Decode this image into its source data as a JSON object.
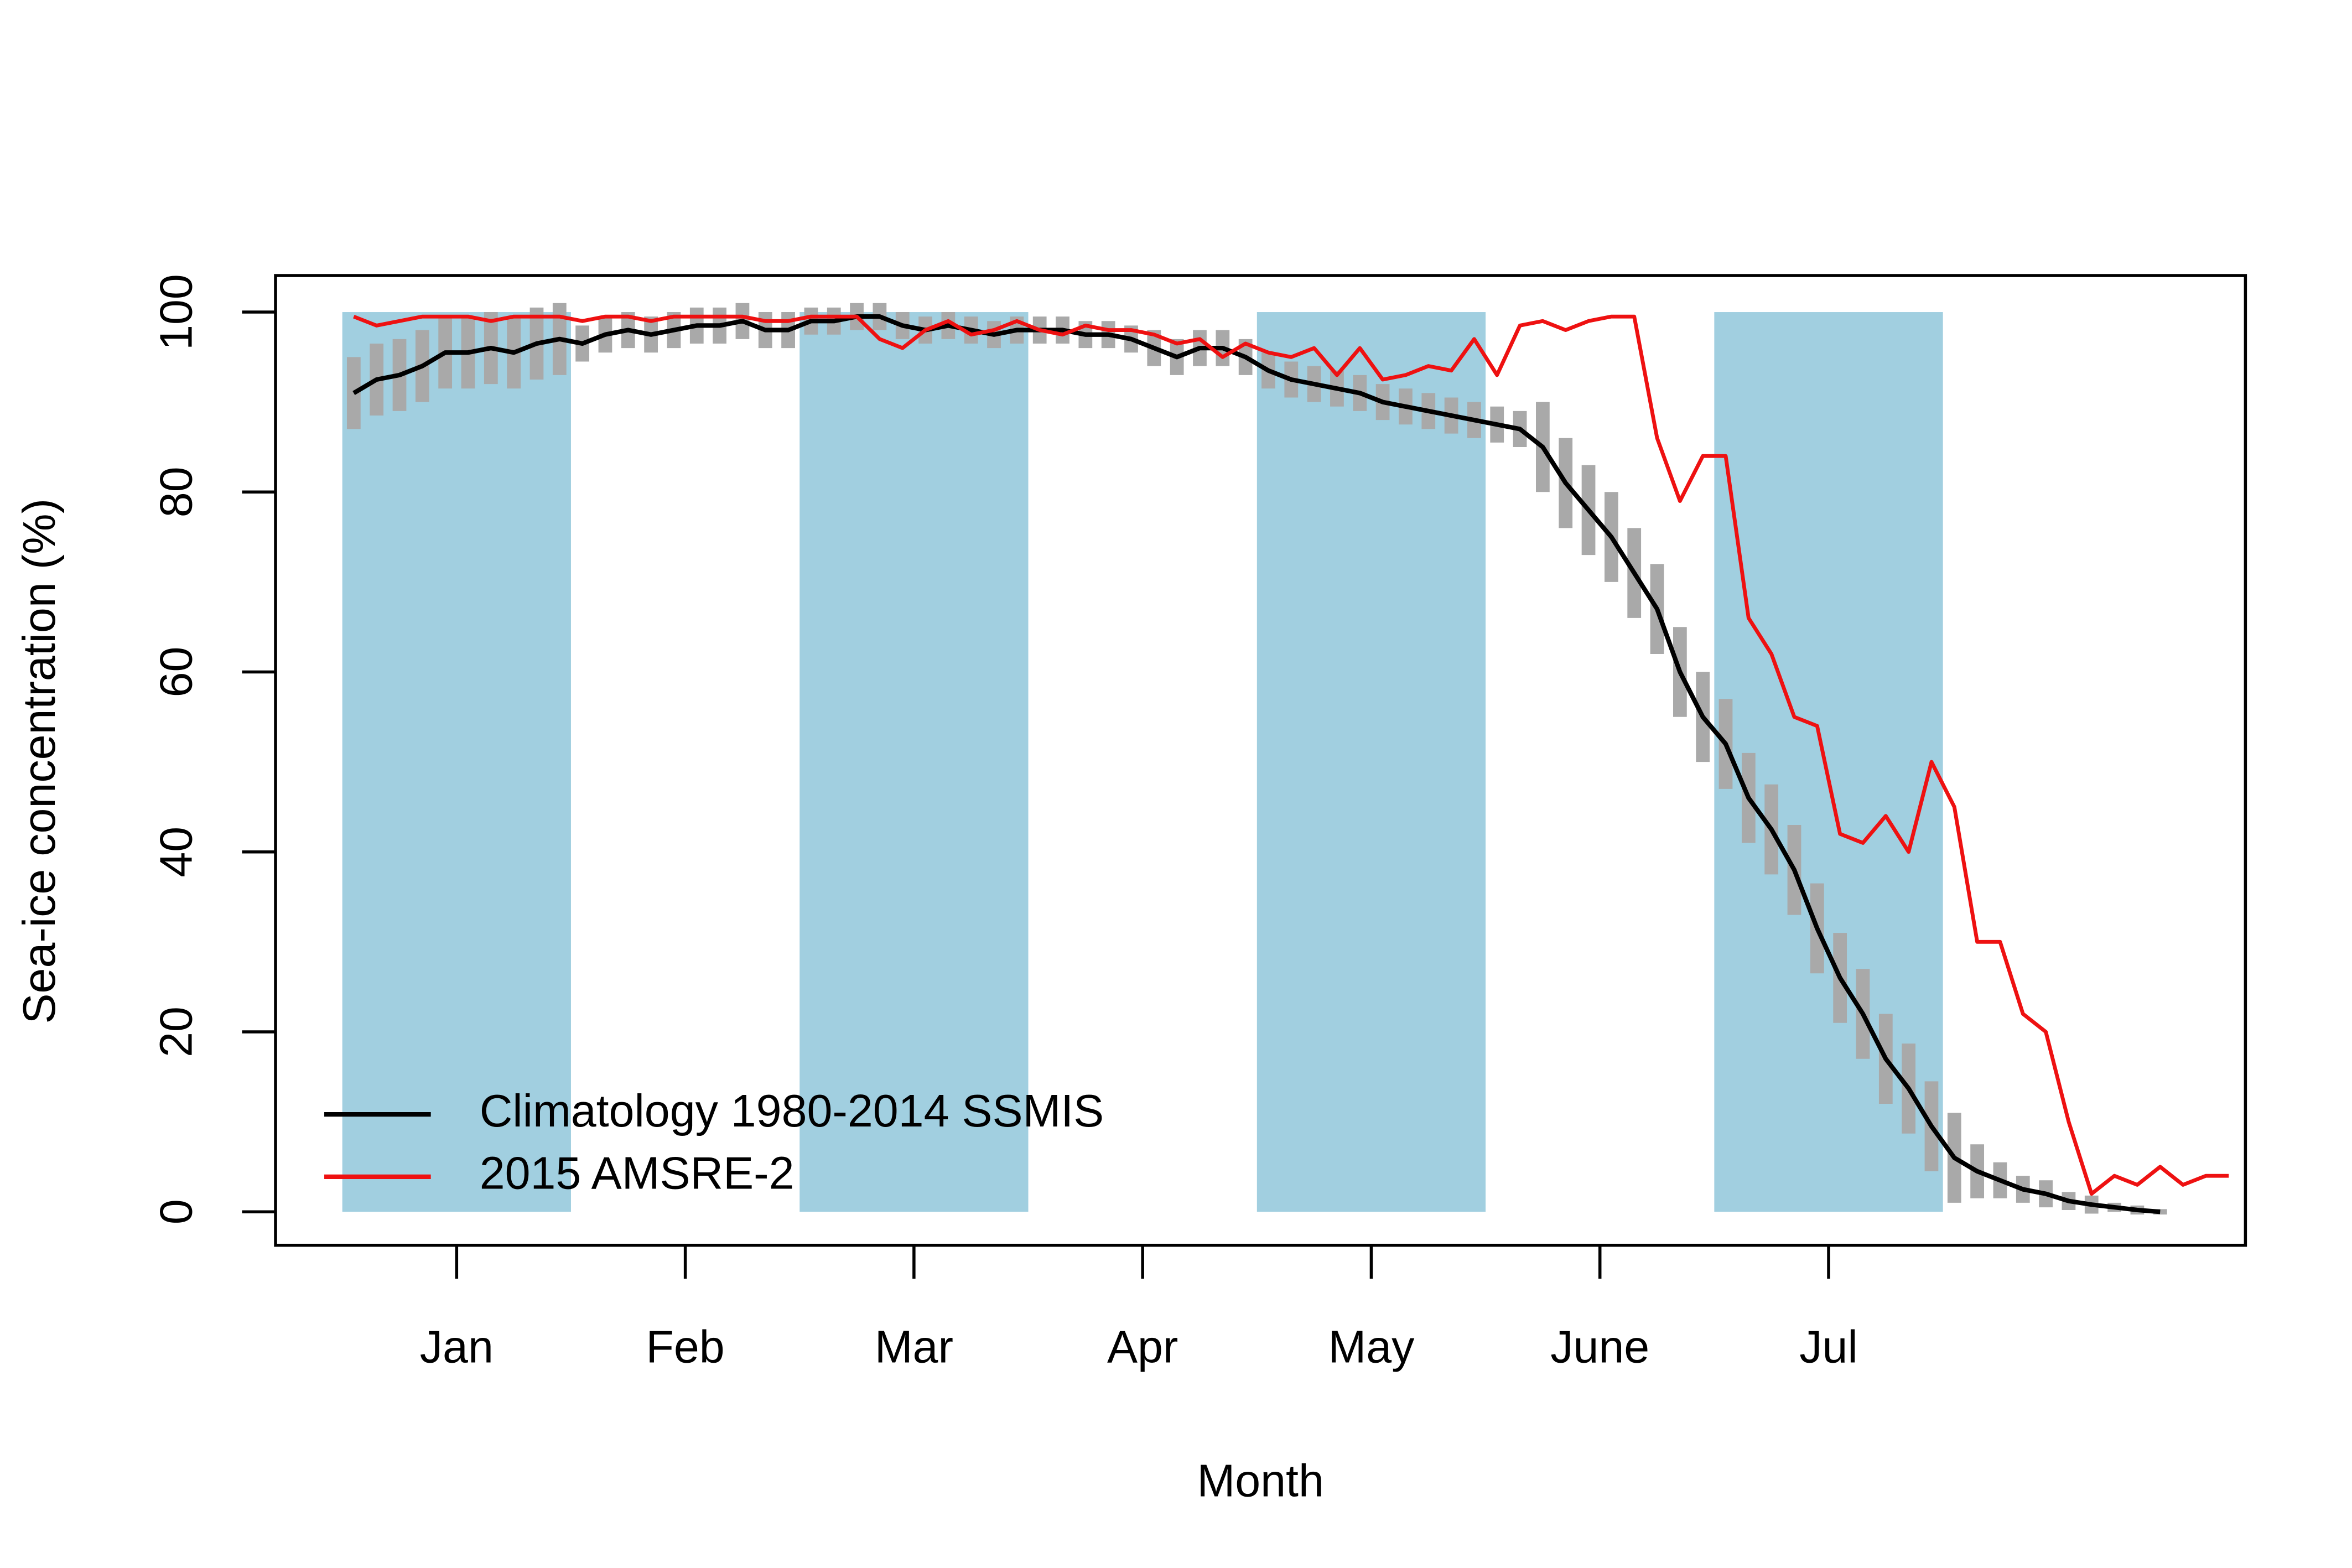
{
  "chart_data": {
    "type": "line",
    "xlabel": "Month",
    "ylabel": "Sea-ice concentration (%)",
    "x": [
      0.55,
      0.65,
      0.75,
      0.85,
      0.95,
      1.05,
      1.15,
      1.25,
      1.35,
      1.45,
      1.55,
      1.65,
      1.75,
      1.85,
      1.95,
      2.05,
      2.15,
      2.25,
      2.35,
      2.45,
      2.55,
      2.65,
      2.75,
      2.85,
      2.95,
      3.05,
      3.15,
      3.25,
      3.35,
      3.45,
      3.55,
      3.65,
      3.75,
      3.85,
      3.95,
      4.05,
      4.15,
      4.25,
      4.35,
      4.45,
      4.55,
      4.65,
      4.75,
      4.85,
      4.95,
      5.05,
      5.15,
      5.25,
      5.35,
      5.45,
      5.55,
      5.65,
      5.75,
      5.85,
      5.95,
      6.05,
      6.15,
      6.25,
      6.35,
      6.45,
      6.55,
      6.65,
      6.75,
      6.85,
      6.95,
      7.05,
      7.15,
      7.25,
      7.35,
      7.45,
      7.55,
      7.65,
      7.75,
      7.85,
      7.95,
      8.05,
      8.15,
      8.25,
      8.35,
      8.45,
      8.55,
      8.65,
      8.75
    ],
    "series": [
      {
        "name": "Climatology 1980-2014 SSMIS",
        "color": "#000000",
        "values": [
          91,
          92.5,
          93,
          94,
          95.5,
          95.5,
          96,
          95.5,
          96.5,
          97,
          96.5,
          97.5,
          98,
          97.5,
          98,
          98.5,
          98.5,
          99,
          98,
          98,
          99,
          99,
          99.5,
          99.5,
          98.5,
          98,
          98.5,
          98,
          97.5,
          98,
          98,
          98,
          97.5,
          97.5,
          97,
          96,
          95,
          96,
          96,
          95,
          93.5,
          92.5,
          92,
          91.5,
          91,
          90,
          89.5,
          89,
          88.5,
          88,
          87.5,
          87,
          85,
          81,
          78,
          75,
          71,
          67,
          60,
          55,
          52,
          46,
          42.5,
          38,
          31.5,
          26,
          22,
          17,
          13.7,
          9.5,
          6,
          4.5,
          3.5,
          2.5,
          2,
          1.2,
          0.8,
          0.5,
          0.2,
          0,
          null,
          null,
          null
        ],
        "errors": [
          4,
          4,
          4,
          4,
          4,
          4,
          4,
          4,
          4,
          4,
          2,
          2,
          2,
          2,
          2,
          2,
          2,
          2,
          2,
          2,
          1.5,
          1.5,
          1.5,
          1.5,
          1.5,
          1.5,
          1.5,
          1.5,
          1.5,
          1.5,
          1.5,
          1.5,
          1.5,
          1.5,
          1.5,
          2,
          2,
          2,
          2,
          2,
          2,
          2,
          2,
          2,
          2,
          2,
          2,
          2,
          2,
          2,
          2,
          2,
          5,
          5,
          5,
          5,
          5,
          5,
          5,
          5,
          5,
          5,
          5,
          5,
          5,
          5,
          5,
          5,
          5,
          5,
          5,
          3,
          2,
          1.5,
          1.5,
          1,
          1,
          0.5,
          0.5,
          0.3,
          null,
          null,
          null
        ],
        "error_color": "#a9a9a9"
      },
      {
        "name": "2015 AMSRE-2",
        "color": "#ee1111",
        "values": [
          99.5,
          98.5,
          99,
          99.5,
          99.5,
          99.5,
          99,
          99.5,
          99.5,
          99.5,
          99,
          99.5,
          99.5,
          99,
          99.5,
          99.5,
          99.5,
          99.5,
          99,
          99,
          99.5,
          99.5,
          99.5,
          97,
          96,
          98,
          99,
          97.5,
          98,
          99,
          98,
          97.5,
          98.5,
          98,
          98,
          97.5,
          96.5,
          97,
          95,
          96.5,
          95.5,
          95,
          96,
          93,
          96,
          92.5,
          93,
          94,
          93.5,
          97,
          93,
          98.5,
          99,
          98,
          99,
          99.5,
          99.5,
          86,
          79,
          84,
          84,
          66,
          62,
          55,
          54,
          42,
          41,
          44,
          40,
          50,
          45,
          30,
          30,
          22,
          20,
          10,
          2,
          4,
          3,
          5,
          3,
          4,
          4
        ]
      }
    ],
    "shaded_spans": [
      [
        0.5,
        1.5
      ],
      [
        2.5,
        3.5
      ],
      [
        4.5,
        5.5
      ],
      [
        6.5,
        7.5
      ]
    ],
    "shade_color": "#a1cfe0",
    "shade_ylim": [
      0,
      100
    ],
    "xlim": [
      0.208,
      8.823
    ],
    "xticks": [
      {
        "value": 1,
        "label": "Jan"
      },
      {
        "value": 2,
        "label": "Feb"
      },
      {
        "value": 3,
        "label": "Mar"
      },
      {
        "value": 4,
        "label": "Apr"
      },
      {
        "value": 5,
        "label": "May"
      },
      {
        "value": 6,
        "label": "June"
      },
      {
        "value": 7,
        "label": "Jul"
      }
    ],
    "ylim": [
      -3.72,
      104.06
    ],
    "yticks": [
      0,
      20,
      40,
      60,
      80,
      100
    ],
    "legend": "bottomleft",
    "grid": false
  }
}
